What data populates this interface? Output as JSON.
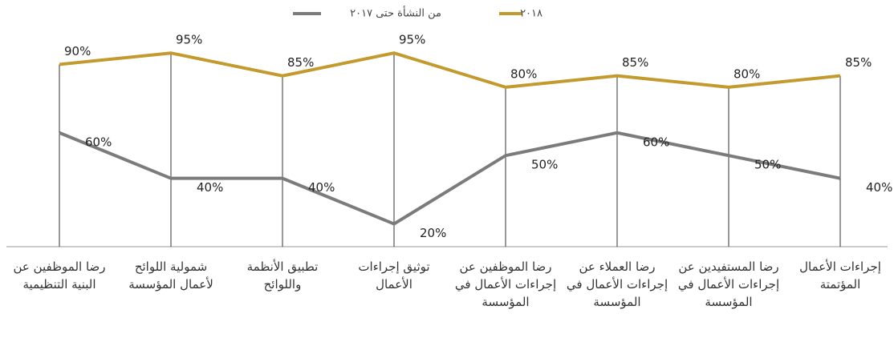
{
  "chart_data": {
    "type": "line",
    "categories": [
      "رضا الموظفين عن البنية التنظيمية",
      "شمولية اللوائح لأعمال المؤسسة",
      "تطبيق الأنظمة واللوائح",
      "توثيق إجراءات الأعمال",
      "رضا الموظفين عن إجراءات الأعمال في المؤسسة",
      "رضا العملاء عن إجراءات الأعمال في المؤسسة",
      "رضا المستفيدين عن إجراءات الأعمال في المؤسسة",
      "إجراءات الأعمال المؤتمتة"
    ],
    "series": [
      {
        "name": "٢٠١٨",
        "color": "#c39a2e",
        "values": [
          90,
          95,
          85,
          95,
          80,
          85,
          80,
          85
        ],
        "value_labels": [
          "90%",
          "95%",
          "85%",
          "95%",
          "80%",
          "85%",
          "80%",
          "85%"
        ]
      },
      {
        "name": "من النشأة حتى ٢٠١٧",
        "color": "#7b7b7b",
        "values": [
          60,
          40,
          40,
          20,
          50,
          60,
          50,
          40
        ],
        "value_labels": [
          "60%",
          "40%",
          "40%",
          "20%",
          "50%",
          "60%",
          "50%",
          "40%"
        ]
      }
    ],
    "ylim": [
      10,
      100
    ]
  }
}
